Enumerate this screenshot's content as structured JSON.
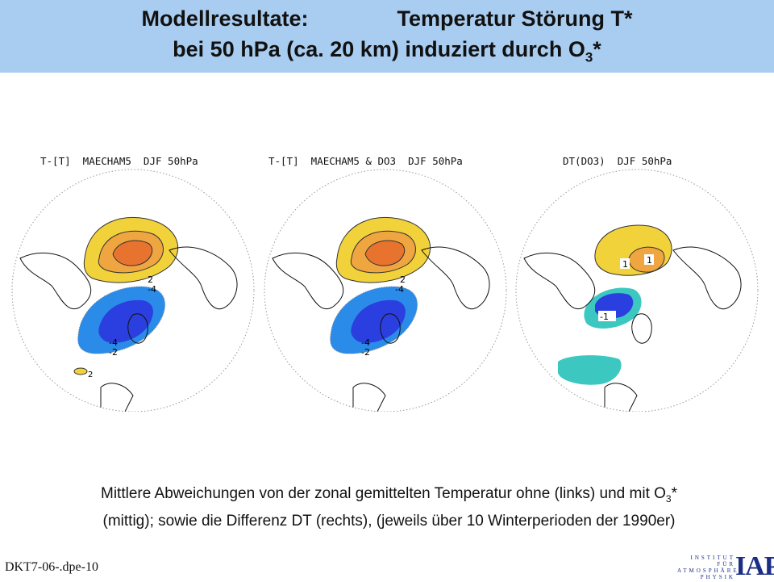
{
  "header": {
    "title_line1_left": "Modellresultate:",
    "title_line1_right": "Temperatur Störung T*",
    "title_line2_main": "bei 50 hPa (ca. 20 km) induziert durch O",
    "title_line2_sub": "3",
    "title_line2_tail": "*"
  },
  "panels": [
    {
      "label": "T-[T]  MAECHAM5  DJF 50hPa",
      "contours": [
        "2",
        "4",
        "-2",
        "-4",
        "-4",
        "-2",
        "2"
      ]
    },
    {
      "label": "T-[T]  MAECHAM5 & DO3  DJF 50hPa",
      "contours": [
        "2",
        "-4",
        "-4",
        "-2"
      ]
    },
    {
      "label": "DT(DO3)  DJF 50hPa",
      "contours": [
        "1",
        "1",
        "-1"
      ]
    }
  ],
  "caption": {
    "line1_main": "Mittlere Abweichungen von der zonal gemittelten Temperatur ohne (links) und mit O",
    "line1_sub": "3",
    "line1_tail": "*",
    "line2": "(mittig); sowie die Differenz  DT  (rechts), (jeweils über 10 Winterperioden der 1990er)"
  },
  "footer": {
    "code": "DKT7-06-.dpe-10"
  },
  "logo": {
    "row1": "INSTITUT",
    "row2": "FÜR",
    "row3": "ATMOSPHÄREN",
    "row4": "PHYSIK",
    "abbr": "IAP"
  },
  "colors": {
    "header_bg": "#a9cdf0",
    "warm_outer": "#f2d23a",
    "warm_mid": "#f0a640",
    "warm_inner": "#e8732e",
    "cold_outer": "#2a8ce8",
    "cold_inner": "#2b3fe0",
    "diff_cold": "#3cc8c0"
  }
}
